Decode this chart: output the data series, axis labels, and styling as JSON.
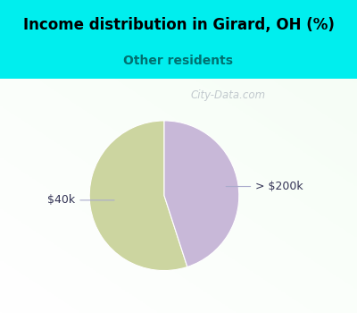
{
  "title": "Income distribution in Girard, OH (%)",
  "subtitle": "Other residents",
  "title_color": "#000000",
  "subtitle_color": "#007070",
  "title_bg_color": "#00EEEE",
  "chart_bg_color": "#e8f5ec",
  "slices": [
    {
      "label": "$40k",
      "value": 55,
      "color": "#ccd5a0"
    },
    {
      "label": "> $200k",
      "value": 45,
      "color": "#c8b8d8"
    }
  ],
  "watermark": "City-Data.com",
  "startangle": 90,
  "label_color": "#333355",
  "line_color": "#aaaacc"
}
